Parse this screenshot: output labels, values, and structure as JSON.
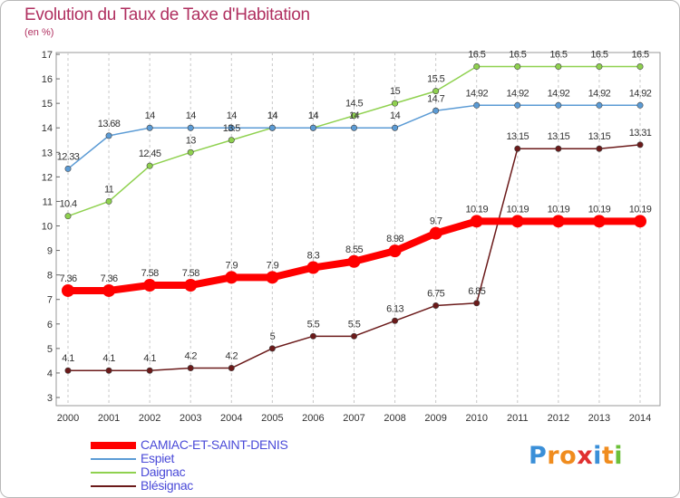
{
  "title": "Evolution du Taux de Taxe d'Habitation",
  "subtitle": "(en %)",
  "logo": {
    "text": "Proxiti",
    "colors": [
      "#3a8fd8",
      "#f08c1e",
      "#f08c1e",
      "#e03030",
      "#3a8fd8",
      "#f08c1e",
      "#6cc03a"
    ]
  },
  "chart_data": {
    "type": "line",
    "x": [
      2000,
      2001,
      2002,
      2003,
      2004,
      2005,
      2006,
      2007,
      2008,
      2009,
      2010,
      2011,
      2012,
      2013,
      2014
    ],
    "ylim": [
      3,
      17
    ],
    "yticks": [
      3,
      4,
      5,
      6,
      7,
      8,
      9,
      10,
      11,
      12,
      13,
      14,
      15,
      16,
      17
    ],
    "grid": "vertical dashed",
    "legend_position": "bottom-left",
    "series": [
      {
        "name": "CAMIAC-ET-SAINT-DENIS",
        "color": "#ff0000",
        "values": [
          7.36,
          7.36,
          7.58,
          7.58,
          7.9,
          7.9,
          8.3,
          8.55,
          8.98,
          9.7,
          10.19,
          10.19,
          10.19,
          10.19,
          10.19
        ]
      },
      {
        "name": "Espiet",
        "color": "#5b9bd5",
        "values": [
          12.33,
          13.68,
          14,
          14,
          14,
          14,
          14,
          14,
          14,
          14.7,
          14.92,
          14.92,
          14.92,
          14.92,
          14.92
        ]
      },
      {
        "name": "Daignac",
        "color": "#8fd14f",
        "values": [
          10.4,
          11,
          12.45,
          13,
          13.5,
          14,
          14,
          14.5,
          15,
          15.5,
          16.5,
          16.5,
          16.5,
          16.5,
          16.5
        ]
      },
      {
        "name": "Blésignac",
        "color": "#6b1a1a",
        "values": [
          4.1,
          4.1,
          4.1,
          4.2,
          4.2,
          5,
          5.5,
          5.5,
          6.13,
          6.75,
          6.85,
          13.15,
          13.15,
          13.15,
          13.31
        ]
      }
    ]
  }
}
